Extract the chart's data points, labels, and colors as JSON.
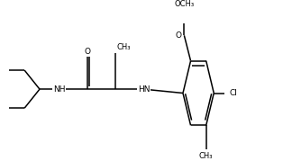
{
  "bg_color": "#ffffff",
  "bond_color": "#000000",
  "font_size": 6.5,
  "line_width": 1.1,
  "figsize": [
    3.14,
    1.79
  ],
  "dpi": 100,
  "xlim": [
    0.0,
    5.2
  ],
  "ylim": [
    0.0,
    1.0
  ]
}
